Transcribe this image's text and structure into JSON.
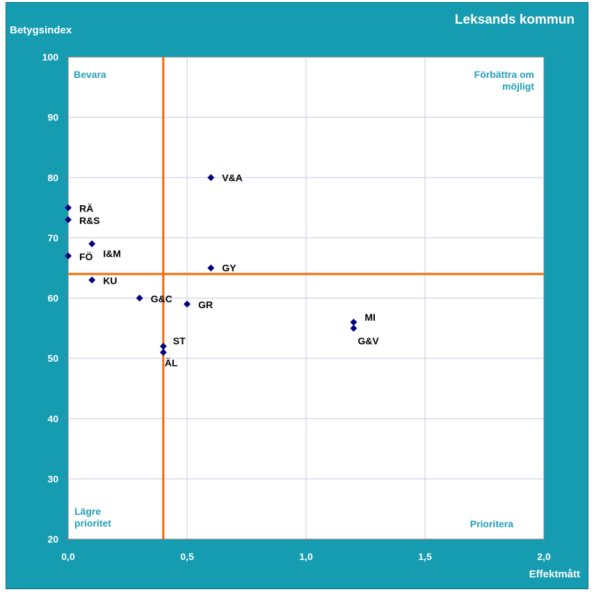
{
  "header": {
    "title": "Leksands kommun"
  },
  "chart_data": {
    "type": "scatter",
    "title": "Leksands kommun",
    "xlabel": "Effektmått",
    "ylabel": "Betygsindex",
    "xlim": [
      0,
      2
    ],
    "ylim": [
      20,
      100
    ],
    "x_ticks": [
      "0,0",
      "0,5",
      "1,0",
      "1,5",
      "2,0"
    ],
    "y_ticks": [
      "20",
      "30",
      "40",
      "50",
      "60",
      "70",
      "80",
      "90",
      "100"
    ],
    "grid": true,
    "marker_color": "#00007f",
    "threshold_color": "#ff6600",
    "thresholds": {
      "x": 0.4,
      "y": 64
    },
    "quadrant_labels": {
      "top_left": "Bevara",
      "top_right": [
        "Förbättra om",
        "möjligt"
      ],
      "bottom_left": [
        "Lägre",
        "prioritet"
      ],
      "bottom_right": "Prioritera"
    },
    "points": [
      {
        "label": "V&A",
        "x": 0.6,
        "y": 80
      },
      {
        "label": "RÄ",
        "x": 0.0,
        "y": 75
      },
      {
        "label": "R&S",
        "x": 0.0,
        "y": 73
      },
      {
        "label": "I&M",
        "x": 0.1,
        "y": 69
      },
      {
        "label": "FÖ",
        "x": 0.0,
        "y": 67
      },
      {
        "label": "GY",
        "x": 0.6,
        "y": 65
      },
      {
        "label": "KU",
        "x": 0.1,
        "y": 63
      },
      {
        "label": "G&C",
        "x": 0.3,
        "y": 60
      },
      {
        "label": "GR",
        "x": 0.5,
        "y": 59
      },
      {
        "label": "MI",
        "x": 1.2,
        "y": 56
      },
      {
        "label": "G&V",
        "x": 1.2,
        "y": 55
      },
      {
        "label": "ST",
        "x": 0.4,
        "y": 52
      },
      {
        "label": "ÄL",
        "x": 0.4,
        "y": 51
      }
    ]
  }
}
